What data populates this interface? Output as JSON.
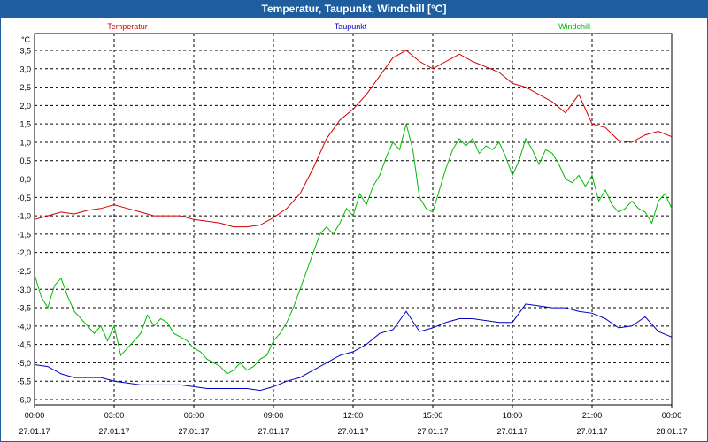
{
  "window": {
    "title": "Temperatur, Taupunkt, Windchill [°C]"
  },
  "colors": {
    "temperature": "#d40000",
    "dewpoint": "#0000c0",
    "windchill": "#00bb00",
    "title_bar": "#1e5e9e"
  },
  "chart_data": {
    "type": "line",
    "title": "Temperatur, Taupunkt, Windchill [°C]",
    "ylabel": "°C",
    "ylim": [
      -6.0,
      3.8
    ],
    "y_ticks": [
      "3,5",
      "3,0",
      "2,5",
      "2,0",
      "1,5",
      "1,0",
      "0,5",
      "0,0",
      "-0,5",
      "-1,0",
      "-1,5",
      "-2,0",
      "-2,5",
      "-3,0",
      "-3,5",
      "-4,0",
      "-4,5",
      "-5,0",
      "-5,5",
      "-6,0"
    ],
    "x_ticks": [
      {
        "time": "00:00",
        "date": "27.01.17"
      },
      {
        "time": "03:00",
        "date": "27.01.17"
      },
      {
        "time": "06:00",
        "date": "27.01.17"
      },
      {
        "time": "09:00",
        "date": "27.01.17"
      },
      {
        "time": "12:00",
        "date": "27.01.17"
      },
      {
        "time": "15:00",
        "date": "27.01.17"
      },
      {
        "time": "18:00",
        "date": "27.01.17"
      },
      {
        "time": "21:00",
        "date": "27.01.17"
      },
      {
        "time": "00:00",
        "date": "28.01.17"
      }
    ],
    "grid": true,
    "legend_position": "top",
    "x_unit": "hours since 27.01.17 00:00",
    "series": [
      {
        "name": "Temperatur",
        "color": "#d40000",
        "points": [
          [
            0,
            -1.1
          ],
          [
            0.5,
            -1.0
          ],
          [
            1,
            -0.9
          ],
          [
            1.5,
            -0.95
          ],
          [
            2,
            -0.85
          ],
          [
            2.5,
            -0.8
          ],
          [
            3,
            -0.7
          ],
          [
            3.5,
            -0.8
          ],
          [
            4,
            -0.9
          ],
          [
            4.5,
            -1.0
          ],
          [
            5,
            -1.0
          ],
          [
            5.5,
            -1.0
          ],
          [
            6,
            -1.1
          ],
          [
            6.5,
            -1.15
          ],
          [
            7,
            -1.2
          ],
          [
            7.5,
            -1.3
          ],
          [
            8,
            -1.3
          ],
          [
            8.5,
            -1.25
          ],
          [
            9,
            -1.05
          ],
          [
            9.5,
            -0.8
          ],
          [
            10,
            -0.4
          ],
          [
            10.5,
            0.3
          ],
          [
            11,
            1.1
          ],
          [
            11.5,
            1.6
          ],
          [
            12,
            1.9
          ],
          [
            12.5,
            2.3
          ],
          [
            13,
            2.8
          ],
          [
            13.5,
            3.3
          ],
          [
            14,
            3.5
          ],
          [
            14.5,
            3.2
          ],
          [
            15,
            3.0
          ],
          [
            15.5,
            3.2
          ],
          [
            16,
            3.4
          ],
          [
            16.5,
            3.2
          ],
          [
            17,
            3.05
          ],
          [
            17.5,
            2.9
          ],
          [
            18,
            2.6
          ],
          [
            18.5,
            2.5
          ],
          [
            19,
            2.3
          ],
          [
            19.5,
            2.1
          ],
          [
            20,
            1.8
          ],
          [
            20.5,
            2.3
          ],
          [
            21,
            1.5
          ],
          [
            21.5,
            1.4
          ],
          [
            22,
            1.05
          ],
          [
            22.5,
            1.0
          ],
          [
            23,
            1.2
          ],
          [
            23.5,
            1.3
          ],
          [
            24,
            1.15
          ]
        ]
      },
      {
        "name": "Taupunkt",
        "color": "#0000c0",
        "points": [
          [
            0,
            -5.05
          ],
          [
            0.5,
            -5.1
          ],
          [
            1,
            -5.3
          ],
          [
            1.5,
            -5.4
          ],
          [
            2,
            -5.4
          ],
          [
            2.5,
            -5.4
          ],
          [
            3,
            -5.5
          ],
          [
            3.5,
            -5.55
          ],
          [
            4,
            -5.6
          ],
          [
            4.5,
            -5.6
          ],
          [
            5,
            -5.6
          ],
          [
            5.5,
            -5.6
          ],
          [
            6,
            -5.65
          ],
          [
            6.5,
            -5.7
          ],
          [
            7,
            -5.7
          ],
          [
            7.5,
            -5.7
          ],
          [
            8,
            -5.7
          ],
          [
            8.5,
            -5.75
          ],
          [
            9,
            -5.65
          ],
          [
            9.5,
            -5.5
          ],
          [
            10,
            -5.4
          ],
          [
            10.5,
            -5.2
          ],
          [
            11,
            -5.0
          ],
          [
            11.5,
            -4.8
          ],
          [
            12,
            -4.7
          ],
          [
            12.5,
            -4.5
          ],
          [
            13,
            -4.2
          ],
          [
            13.5,
            -4.1
          ],
          [
            14,
            -3.6
          ],
          [
            14.5,
            -4.15
          ],
          [
            15,
            -4.05
          ],
          [
            15.5,
            -3.9
          ],
          [
            16,
            -3.8
          ],
          [
            16.5,
            -3.8
          ],
          [
            17,
            -3.85
          ],
          [
            17.5,
            -3.9
          ],
          [
            18,
            -3.9
          ],
          [
            18.5,
            -3.4
          ],
          [
            19,
            -3.45
          ],
          [
            19.5,
            -3.5
          ],
          [
            20,
            -3.5
          ],
          [
            20.5,
            -3.6
          ],
          [
            21,
            -3.65
          ],
          [
            21.5,
            -3.8
          ],
          [
            22,
            -4.05
          ],
          [
            22.5,
            -4.0
          ],
          [
            23,
            -3.75
          ],
          [
            23.5,
            -4.15
          ],
          [
            24,
            -4.3
          ]
        ]
      },
      {
        "name": "Windchill",
        "color": "#00bb00",
        "points": [
          [
            0,
            -2.6
          ],
          [
            0.25,
            -3.2
          ],
          [
            0.5,
            -3.5
          ],
          [
            0.75,
            -2.9
          ],
          [
            1,
            -2.7
          ],
          [
            1.25,
            -3.2
          ],
          [
            1.5,
            -3.6
          ],
          [
            1.75,
            -3.8
          ],
          [
            2,
            -4.0
          ],
          [
            2.25,
            -4.2
          ],
          [
            2.5,
            -4.0
          ],
          [
            2.75,
            -4.4
          ],
          [
            3,
            -4.0
          ],
          [
            3.25,
            -4.8
          ],
          [
            3.5,
            -4.6
          ],
          [
            3.75,
            -4.4
          ],
          [
            4,
            -4.2
          ],
          [
            4.25,
            -3.7
          ],
          [
            4.5,
            -4.0
          ],
          [
            4.75,
            -3.8
          ],
          [
            5,
            -3.9
          ],
          [
            5.25,
            -4.2
          ],
          [
            5.5,
            -4.3
          ],
          [
            5.75,
            -4.4
          ],
          [
            6,
            -4.6
          ],
          [
            6.25,
            -4.7
          ],
          [
            6.5,
            -4.9
          ],
          [
            6.75,
            -5.0
          ],
          [
            7,
            -5.1
          ],
          [
            7.25,
            -5.3
          ],
          [
            7.5,
            -5.2
          ],
          [
            7.75,
            -5.0
          ],
          [
            8,
            -5.2
          ],
          [
            8.25,
            -5.1
          ],
          [
            8.5,
            -4.9
          ],
          [
            8.75,
            -4.8
          ],
          [
            9,
            -4.4
          ],
          [
            9.25,
            -4.2
          ],
          [
            9.5,
            -3.9
          ],
          [
            9.75,
            -3.5
          ],
          [
            10,
            -3.0
          ],
          [
            10.25,
            -2.5
          ],
          [
            10.5,
            -2.0
          ],
          [
            10.75,
            -1.5
          ],
          [
            11,
            -1.3
          ],
          [
            11.25,
            -1.5
          ],
          [
            11.5,
            -1.2
          ],
          [
            11.75,
            -0.8
          ],
          [
            12,
            -1.0
          ],
          [
            12.25,
            -0.4
          ],
          [
            12.5,
            -0.7
          ],
          [
            12.75,
            -0.2
          ],
          [
            13,
            0.1
          ],
          [
            13.25,
            0.6
          ],
          [
            13.5,
            1.0
          ],
          [
            13.75,
            0.8
          ],
          [
            14,
            1.5
          ],
          [
            14.25,
            0.8
          ],
          [
            14.5,
            -0.5
          ],
          [
            14.75,
            -0.8
          ],
          [
            15,
            -0.9
          ],
          [
            15.25,
            -0.3
          ],
          [
            15.5,
            0.3
          ],
          [
            15.75,
            0.8
          ],
          [
            16,
            1.1
          ],
          [
            16.25,
            0.9
          ],
          [
            16.5,
            1.1
          ],
          [
            16.75,
            0.7
          ],
          [
            17,
            0.9
          ],
          [
            17.25,
            0.8
          ],
          [
            17.5,
            1.0
          ],
          [
            17.75,
            0.6
          ],
          [
            18,
            0.1
          ],
          [
            18.25,
            0.5
          ],
          [
            18.5,
            1.1
          ],
          [
            18.75,
            0.8
          ],
          [
            19,
            0.4
          ],
          [
            19.25,
            0.8
          ],
          [
            19.5,
            0.7
          ],
          [
            19.75,
            0.4
          ],
          [
            20,
            0.0
          ],
          [
            20.25,
            -0.1
          ],
          [
            20.5,
            0.1
          ],
          [
            20.75,
            -0.2
          ],
          [
            21,
            0.1
          ],
          [
            21.25,
            -0.6
          ],
          [
            21.5,
            -0.3
          ],
          [
            21.75,
            -0.7
          ],
          [
            22,
            -0.9
          ],
          [
            22.25,
            -0.8
          ],
          [
            22.5,
            -0.6
          ],
          [
            22.75,
            -0.8
          ],
          [
            23,
            -0.9
          ],
          [
            23.25,
            -1.2
          ],
          [
            23.5,
            -0.6
          ],
          [
            23.75,
            -0.4
          ],
          [
            24,
            -0.8
          ]
        ]
      }
    ]
  }
}
